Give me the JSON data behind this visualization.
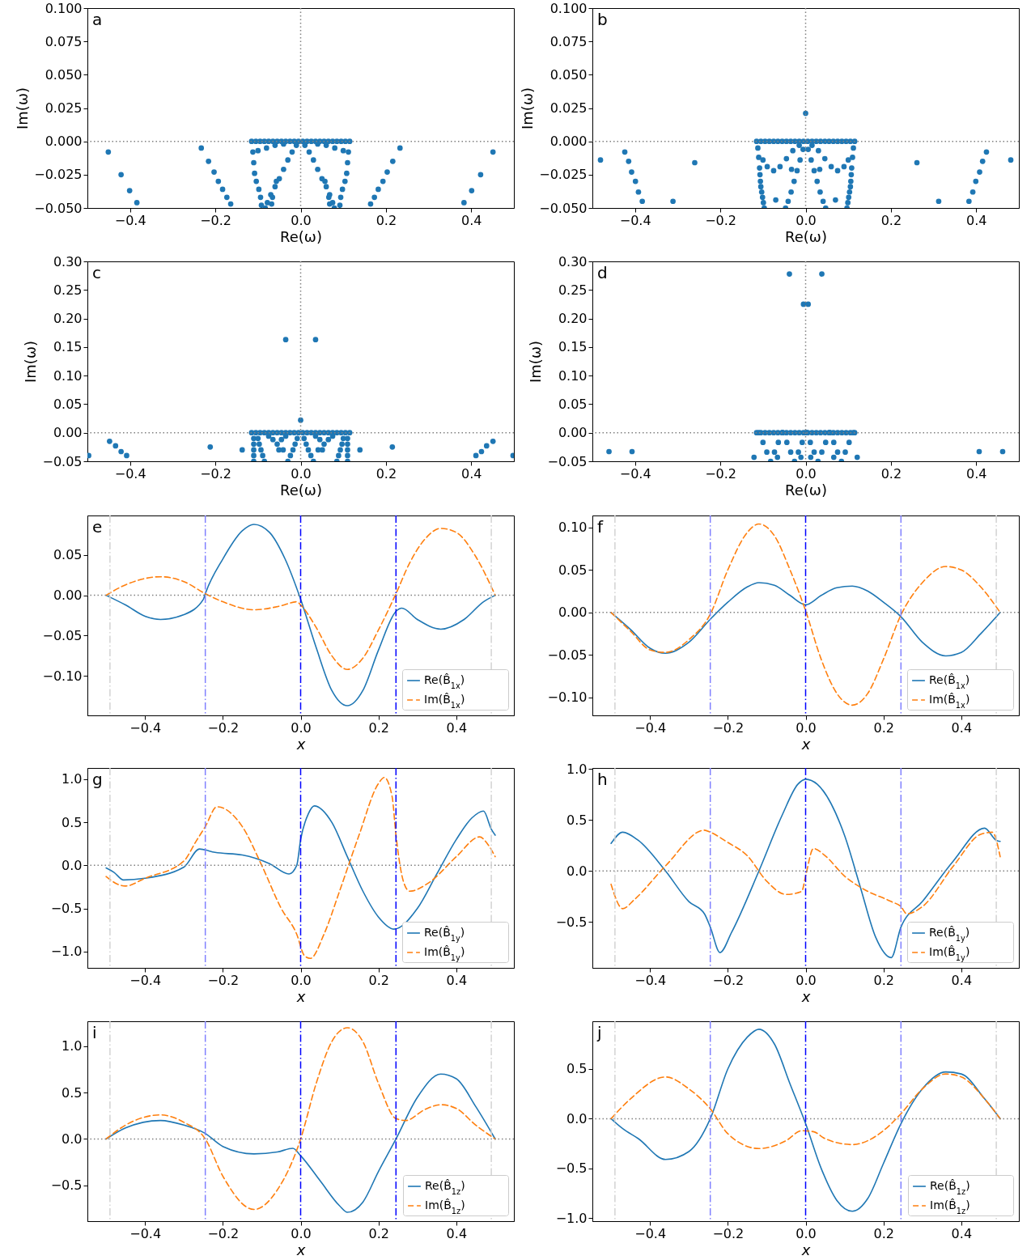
{
  "chart_data": [
    {
      "type": "scatter",
      "title": "a",
      "xlabel": "Re(ω)",
      "ylabel": "Im(ω)",
      "color": "#1f77b4",
      "marker": "circle",
      "xlim": [
        -0.5,
        0.5
      ],
      "ylim": [
        -0.05,
        0.1
      ],
      "xticks": [
        {
          "value": -0.4,
          "label": "−0.4"
        },
        {
          "value": -0.2,
          "label": "−0.2"
        },
        {
          "value": 0,
          "label": "0.0"
        },
        {
          "value": 0.2,
          "label": "0.2"
        },
        {
          "value": 0.4,
          "label": "0.4"
        }
      ],
      "yticks": [
        {
          "value": -0.05,
          "label": "−0.050"
        },
        {
          "value": -0.025,
          "label": "−0.025"
        },
        {
          "value": 0,
          "label": "0.000"
        },
        {
          "value": 0.025,
          "label": "0.025"
        },
        {
          "value": 0.05,
          "label": "0.050"
        },
        {
          "value": 0.075,
          "label": "0.075"
        },
        {
          "value": 0.1,
          "label": "0.100"
        }
      ],
      "ref_lines": [
        {
          "axis": "y",
          "value": 0,
          "color": "#808080",
          "line_style": "dotted"
        },
        {
          "axis": "x",
          "value": 0,
          "color": "#808080",
          "line_style": "dotted"
        }
      ],
      "x": [
        -0.115,
        -0.105,
        -0.095,
        -0.085,
        -0.075,
        -0.065,
        -0.055,
        -0.045,
        -0.035,
        -0.025,
        -0.015,
        -0.005,
        0.005,
        0.015,
        0.025,
        0.035,
        0.045,
        0.055,
        0.065,
        0.075,
        0.085,
        0.095,
        0.105,
        0.115,
        -0.112,
        -0.11,
        -0.108,
        -0.104,
        -0.098,
        -0.094,
        -0.092,
        0.112,
        0.11,
        0.108,
        0.104,
        0.098,
        0.094,
        0.092,
        -0.1,
        -0.08,
        -0.06,
        -0.04,
        0.1,
        0.08,
        0.06,
        0.04,
        -0.01,
        -0.02,
        -0.03,
        -0.04,
        -0.05,
        -0.06,
        -0.07,
        -0.078,
        -0.083,
        0.01,
        0.02,
        0.03,
        0.04,
        0.05,
        0.06,
        0.068,
        0.075,
        0.079,
        -0.057,
        -0.066,
        -0.068,
        0.057,
        0.066,
        0.068,
        -0.451,
        -0.421,
        -0.401,
        -0.384,
        -0.233,
        -0.216,
        -0.203,
        -0.193,
        -0.183,
        -0.173,
        -0.164,
        0.164,
        0.173,
        0.182,
        0.193,
        0.203,
        0.216,
        0.233,
        0.383,
        0.401,
        0.422,
        0.451
      ],
      "values": [
        0,
        0,
        0,
        0,
        0,
        0,
        0,
        0,
        0,
        0,
        0,
        0,
        0,
        0,
        0,
        0,
        0,
        0,
        0,
        0,
        0,
        0,
        0,
        0,
        -0.008,
        -0.016,
        -0.024,
        -0.03,
        -0.036,
        -0.042,
        -0.048,
        -0.008,
        -0.016,
        -0.024,
        -0.03,
        -0.036,
        -0.042,
        -0.048,
        -0.007,
        -0.005,
        -0.003,
        -0.002,
        -0.007,
        -0.005,
        -0.003,
        -0.002,
        -0.003,
        -0.008,
        -0.014,
        -0.021,
        -0.028,
        -0.034,
        -0.04,
        -0.046,
        -0.05,
        -0.003,
        -0.008,
        -0.014,
        -0.021,
        -0.028,
        -0.034,
        -0.04,
        -0.046,
        -0.05,
        -0.03,
        -0.042,
        -0.047,
        -0.03,
        -0.042,
        -0.047,
        -0.008,
        -0.025,
        -0.037,
        -0.046,
        -0.005,
        -0.015,
        -0.023,
        -0.03,
        -0.036,
        -0.042,
        -0.047,
        -0.047,
        -0.042,
        -0.036,
        -0.03,
        -0.023,
        -0.015,
        -0.005,
        -0.046,
        -0.037,
        -0.025,
        -0.008
      ]
    },
    {
      "type": "scatter",
      "title": "b",
      "xlabel": "Re(ω)",
      "ylabel": "Im(ω)",
      "color": "#1f77b4",
      "marker": "circle",
      "xlim": [
        -0.5,
        0.5
      ],
      "ylim": [
        -0.05,
        0.1
      ],
      "xticks": [
        {
          "value": -0.4,
          "label": "−0.4"
        },
        {
          "value": -0.2,
          "label": "−0.2"
        },
        {
          "value": 0,
          "label": "0.0"
        },
        {
          "value": 0.2,
          "label": "0.2"
        },
        {
          "value": 0.4,
          "label": "0.4"
        }
      ],
      "yticks": [
        {
          "value": -0.05,
          "label": "−0.050"
        },
        {
          "value": -0.025,
          "label": "−0.025"
        },
        {
          "value": 0,
          "label": "0.000"
        },
        {
          "value": 0.025,
          "label": "0.025"
        },
        {
          "value": 0.05,
          "label": "0.050"
        },
        {
          "value": 0.075,
          "label": "0.075"
        },
        {
          "value": 0.1,
          "label": "0.100"
        }
      ],
      "ref_lines": [
        {
          "axis": "y",
          "value": 0,
          "color": "#808080",
          "line_style": "dotted"
        },
        {
          "axis": "x",
          "value": 0,
          "color": "#808080",
          "line_style": "dotted"
        }
      ],
      "x": [
        -0.115,
        -0.105,
        -0.095,
        -0.085,
        -0.075,
        -0.065,
        -0.055,
        -0.045,
        -0.035,
        -0.025,
        -0.015,
        -0.005,
        0.005,
        0.015,
        0.025,
        0.035,
        0.045,
        0.055,
        0.065,
        0.075,
        0.085,
        0.095,
        0.105,
        0.115,
        -0.112,
        -0.11,
        -0.108,
        -0.107,
        -0.106,
        -0.105,
        -0.103,
        -0.101,
        -0.099,
        -0.097,
        0.112,
        0.11,
        0.108,
        0.107,
        0.106,
        0.105,
        0.103,
        0.101,
        0.099,
        0.097,
        -0.1,
        -0.09,
        -0.075,
        -0.06,
        -0.045,
        -0.03,
        -0.015,
        0.1,
        0.09,
        0.075,
        0.06,
        0.045,
        0.03,
        0.015,
        -0.006,
        -0.013,
        -0.02,
        -0.027,
        -0.034,
        -0.041,
        -0.047,
        0.006,
        0.013,
        0.02,
        0.027,
        0.034,
        0.041,
        0.047,
        -0.033,
        -0.07,
        0.033,
        0.07,
        0,
        -0.481,
        -0.424,
        -0.415,
        -0.408,
        -0.399,
        -0.392,
        -0.383,
        -0.26,
        -0.311,
        0.261,
        0.312,
        0.383,
        0.392,
        0.399,
        0.408,
        0.415,
        0.424,
        0.481
      ],
      "values": [
        0,
        0,
        0,
        0,
        0,
        0,
        0,
        0,
        0,
        0,
        0,
        0,
        0,
        0,
        0,
        0,
        0,
        0,
        0,
        0,
        0,
        0,
        0,
        0,
        -0.005,
        -0.012,
        -0.02,
        -0.025,
        -0.03,
        -0.034,
        -0.038,
        -0.042,
        -0.046,
        -0.05,
        -0.005,
        -0.012,
        -0.02,
        -0.025,
        -0.03,
        -0.034,
        -0.038,
        -0.042,
        -0.046,
        -0.05,
        -0.014,
        -0.019,
        -0.022,
        -0.019,
        -0.013,
        -0.007,
        -0.003,
        -0.014,
        -0.019,
        -0.022,
        -0.019,
        -0.013,
        -0.007,
        -0.003,
        -0.006,
        -0.014,
        -0.022,
        -0.03,
        -0.038,
        -0.045,
        -0.05,
        -0.006,
        -0.014,
        -0.022,
        -0.03,
        -0.038,
        -0.045,
        -0.05,
        -0.021,
        -0.044,
        -0.021,
        -0.044,
        0.021,
        -0.014,
        -0.008,
        -0.015,
        -0.023,
        -0.03,
        -0.038,
        -0.045,
        -0.016,
        -0.045,
        -0.016,
        -0.045,
        -0.045,
        -0.038,
        -0.03,
        -0.023,
        -0.015,
        -0.008,
        -0.014
      ]
    },
    {
      "type": "scatter",
      "title": "c",
      "xlabel": "Re(ω)",
      "ylabel": "Im(ω)",
      "color": "#1f77b4",
      "marker": "circle",
      "xlim": [
        -0.5,
        0.5
      ],
      "ylim": [
        -0.05,
        0.3
      ],
      "xticks": [
        {
          "value": -0.4,
          "label": "−0.4"
        },
        {
          "value": -0.2,
          "label": "−0.2"
        },
        {
          "value": 0,
          "label": "0.0"
        },
        {
          "value": 0.2,
          "label": "0.2"
        },
        {
          "value": 0.4,
          "label": "0.4"
        }
      ],
      "yticks": [
        {
          "value": -0.05,
          "label": "−0.05"
        },
        {
          "value": 0,
          "label": "0.00"
        },
        {
          "value": 0.05,
          "label": "0.05"
        },
        {
          "value": 0.1,
          "label": "0.10"
        },
        {
          "value": 0.15,
          "label": "0.15"
        },
        {
          "value": 0.2,
          "label": "0.20"
        },
        {
          "value": 0.25,
          "label": "0.25"
        },
        {
          "value": 0.3,
          "label": "0.30"
        }
      ],
      "ref_lines": [
        {
          "axis": "y",
          "value": 0,
          "color": "#808080",
          "line_style": "dotted"
        },
        {
          "axis": "x",
          "value": 0,
          "color": "#808080",
          "line_style": "dotted"
        }
      ],
      "x": [
        -0.115,
        -0.105,
        -0.095,
        -0.085,
        -0.075,
        -0.065,
        -0.055,
        -0.045,
        -0.035,
        -0.025,
        -0.015,
        -0.005,
        0.005,
        0.015,
        0.025,
        0.035,
        0.045,
        0.055,
        0.065,
        0.075,
        0.085,
        0.095,
        0.105,
        0.115,
        -0.11,
        -0.11,
        -0.11,
        -0.11,
        -0.11,
        0.11,
        0.11,
        0.11,
        0.11,
        0.11,
        -0.1,
        -0.097,
        -0.093,
        -0.089,
        -0.085,
        0.1,
        0.097,
        0.093,
        0.089,
        0.085,
        -0.008,
        -0.013,
        -0.018,
        -0.024,
        -0.03,
        0.008,
        0.013,
        0.018,
        0.024,
        0.03,
        -0.075,
        -0.065,
        -0.055,
        -0.045,
        -0.035,
        0.075,
        0.065,
        0.055,
        0.045,
        0.035,
        -0.051,
        -0.041,
        0.051,
        0.041,
        0,
        -0.035,
        0.035,
        -0.448,
        -0.434,
        -0.421,
        -0.408,
        -0.497,
        -0.212,
        -0.137,
        0.139,
        0.215,
        0.451,
        0.436,
        0.424,
        0.411,
        0.498
      ],
      "values": [
        0,
        0,
        0,
        0,
        0,
        0,
        0,
        0,
        0,
        0,
        0,
        0,
        0,
        0,
        0,
        0,
        0,
        0,
        0,
        0,
        0,
        0,
        0,
        0,
        -0.01,
        -0.02,
        -0.03,
        -0.04,
        -0.05,
        -0.01,
        -0.02,
        -0.03,
        -0.04,
        -0.05,
        -0.01,
        -0.02,
        -0.03,
        -0.04,
        -0.05,
        -0.01,
        -0.02,
        -0.03,
        -0.04,
        -0.05,
        -0.01,
        -0.02,
        -0.03,
        -0.04,
        -0.05,
        -0.01,
        -0.02,
        -0.03,
        -0.04,
        -0.05,
        -0.006,
        -0.012,
        -0.02,
        -0.012,
        -0.006,
        -0.006,
        -0.012,
        -0.02,
        -0.012,
        -0.006,
        -0.03,
        -0.03,
        -0.03,
        -0.03,
        0.022,
        0.163,
        0.163,
        -0.015,
        -0.023,
        -0.033,
        -0.04,
        -0.04,
        -0.025,
        -0.03,
        -0.03,
        -0.025,
        -0.015,
        -0.023,
        -0.033,
        -0.04,
        -0.04
      ]
    },
    {
      "type": "scatter",
      "title": "d",
      "xlabel": "Re(ω)",
      "ylabel": "Im(ω)",
      "color": "#1f77b4",
      "marker": "circle",
      "xlim": [
        -0.5,
        0.5
      ],
      "ylim": [
        -0.05,
        0.3
      ],
      "xticks": [
        {
          "value": -0.4,
          "label": "−0.4"
        },
        {
          "value": -0.2,
          "label": "−0.2"
        },
        {
          "value": 0,
          "label": "0.0"
        },
        {
          "value": 0.2,
          "label": "0.2"
        },
        {
          "value": 0.4,
          "label": "0.4"
        }
      ],
      "yticks": [
        {
          "value": -0.05,
          "label": "−0.05"
        },
        {
          "value": 0,
          "label": "0.00"
        },
        {
          "value": 0.05,
          "label": "0.05"
        },
        {
          "value": 0.1,
          "label": "0.10"
        },
        {
          "value": 0.15,
          "label": "0.15"
        },
        {
          "value": 0.2,
          "label": "0.20"
        },
        {
          "value": 0.25,
          "label": "0.25"
        },
        {
          "value": 0.3,
          "label": "0.30"
        }
      ],
      "ref_lines": [
        {
          "axis": "y",
          "value": 0,
          "color": "#808080",
          "line_style": "dotted"
        },
        {
          "axis": "x",
          "value": 0,
          "color": "#808080",
          "line_style": "dotted"
        }
      ],
      "x": [
        -0.115,
        -0.105,
        -0.095,
        -0.085,
        -0.075,
        -0.065,
        -0.055,
        -0.045,
        -0.035,
        -0.025,
        -0.015,
        -0.005,
        0.005,
        0.015,
        0.025,
        0.035,
        0.045,
        0.055,
        0.065,
        0.075,
        0.085,
        0.095,
        0.105,
        0.115,
        -0.11,
        -0.1,
        -0.091,
        -0.082,
        -0.073,
        -0.064,
        -0.054,
        -0.054,
        -0.044,
        -0.035,
        -0.026,
        -0.017,
        -0.008,
        0.002,
        0.001,
        0.011,
        0.02,
        0.029,
        0.038,
        0.047,
        0.057,
        0.056,
        0.066,
        0.075,
        0.084,
        0.093,
        0.102,
        0.112,
        -0.038,
        0.038,
        -0.005,
        0.006,
        -0.461,
        -0.407,
        0.407,
        0.462,
        -0.121,
        0.121,
        -0.066,
        -0.011,
        0.012,
        0.066
      ],
      "values": [
        0,
        0,
        0,
        0,
        0,
        0,
        0,
        0,
        0,
        0,
        0,
        0,
        0,
        0,
        0,
        0,
        0,
        0,
        0,
        0,
        0,
        0,
        0,
        0,
        0,
        -0.017,
        -0.034,
        -0.05,
        -0.034,
        -0.017,
        0,
        0,
        -0.017,
        -0.034,
        -0.05,
        -0.034,
        -0.017,
        0,
        0,
        -0.017,
        -0.034,
        -0.05,
        -0.034,
        -0.017,
        0,
        0,
        -0.017,
        -0.034,
        -0.05,
        -0.034,
        -0.017,
        0,
        0.278,
        0.278,
        0.225,
        0.225,
        -0.033,
        -0.033,
        -0.033,
        -0.033,
        -0.043,
        -0.043,
        -0.043,
        -0.043,
        -0.043,
        -0.043
      ]
    },
    {
      "type": "line",
      "title": "e",
      "xlabel": "x",
      "xlim": [
        -0.548,
        0.548
      ],
      "ylim": [
        -0.149,
        0.099
      ],
      "legend": "bottom right",
      "xticks": [
        {
          "value": -0.4,
          "label": "−0.4"
        },
        {
          "value": -0.2,
          "label": "−0.2"
        },
        {
          "value": 0,
          "label": "0.0"
        },
        {
          "value": 0.2,
          "label": "0.2"
        },
        {
          "value": 0.4,
          "label": "0.4"
        }
      ],
      "yticks": [
        {
          "value": -0.1,
          "label": "−0.10"
        },
        {
          "value": -0.05,
          "label": "−0.05"
        },
        {
          "value": 0,
          "label": "0.00"
        },
        {
          "value": 0.05,
          "label": "0.05"
        }
      ],
      "ref_lines": [
        {
          "axis": "y",
          "value": 0,
          "color": "#808080",
          "line_style": "dotted"
        },
        {
          "axis": "x",
          "value": -0.49,
          "color": "#d3d3d3",
          "line_style": "dashdot"
        },
        {
          "axis": "x",
          "value": -0.245,
          "color": "#8080ff",
          "line_style": "dashdot"
        },
        {
          "axis": "x",
          "value": 0,
          "color": "#0000ff",
          "line_style": "dashdot"
        },
        {
          "axis": "x",
          "value": 0.245,
          "color": "#0000ff",
          "line_style": "dashdot"
        },
        {
          "axis": "x",
          "value": 0.49,
          "color": "#d3d3d3",
          "line_style": "dashdot"
        }
      ],
      "series": [
        {
          "name": "Re(B̂$_{1x}$)",
          "color": "#1f77b4",
          "line_style": "solid",
          "x": [
            -0.5,
            -0.45,
            -0.4,
            -0.36,
            -0.3,
            -0.25,
            -0.245,
            -0.2,
            -0.15,
            -0.12,
            -0.08,
            -0.04,
            0,
            0.04,
            0.08,
            0.12,
            0.16,
            0.2,
            0.245,
            0.26,
            0.3,
            0.36,
            0.42,
            0.47,
            0.5
          ],
          "values": [
            0,
            -0.012,
            -0.026,
            -0.03,
            -0.024,
            -0.005,
            0.002,
            0.045,
            0.08,
            0.088,
            0.078,
            0.045,
            -0.005,
            -0.065,
            -0.118,
            -0.137,
            -0.118,
            -0.068,
            -0.02,
            -0.016,
            -0.03,
            -0.042,
            -0.03,
            -0.008,
            0
          ]
        },
        {
          "name": "Im(B̂$_{1x}$)",
          "color": "#ff7f0e",
          "line_style": "dashed",
          "x": [
            -0.5,
            -0.45,
            -0.36,
            -0.3,
            -0.245,
            -0.2,
            -0.12,
            -0.05,
            -0.01,
            0,
            0.04,
            0.08,
            0.12,
            0.16,
            0.2,
            0.245,
            0.28,
            0.32,
            0.36,
            0.4,
            0.45,
            0.5
          ],
          "values": [
            0,
            0.013,
            0.023,
            0.017,
            0.002,
            -0.008,
            -0.018,
            -0.013,
            -0.008,
            -0.012,
            -0.04,
            -0.075,
            -0.092,
            -0.078,
            -0.043,
            0.002,
            0.04,
            0.07,
            0.083,
            0.078,
            0.048,
            0
          ]
        }
      ]
    },
    {
      "type": "line",
      "title": "f",
      "xlabel": "x",
      "xlim": [
        -0.548,
        0.548
      ],
      "ylim": [
        -0.121,
        0.114
      ],
      "legend": "bottom right",
      "xticks": [
        {
          "value": -0.4,
          "label": "−0.4"
        },
        {
          "value": -0.2,
          "label": "−0.2"
        },
        {
          "value": 0,
          "label": "0.0"
        },
        {
          "value": 0.2,
          "label": "0.2"
        },
        {
          "value": 0.4,
          "label": "0.4"
        }
      ],
      "yticks": [
        {
          "value": -0.1,
          "label": "−0.10"
        },
        {
          "value": -0.05,
          "label": "−0.05"
        },
        {
          "value": 0,
          "label": "0.00"
        },
        {
          "value": 0.05,
          "label": "0.05"
        },
        {
          "value": 0.1,
          "label": "0.10"
        }
      ],
      "ref_lines": [
        {
          "axis": "y",
          "value": 0,
          "color": "#808080",
          "line_style": "dotted"
        },
        {
          "axis": "x",
          "value": -0.49,
          "color": "#d3d3d3",
          "line_style": "dashdot"
        },
        {
          "axis": "x",
          "value": -0.245,
          "color": "#8080ff",
          "line_style": "dashdot"
        },
        {
          "axis": "x",
          "value": 0,
          "color": "#0000ff",
          "line_style": "dashdot"
        },
        {
          "axis": "x",
          "value": 0.245,
          "color": "#8080ff",
          "line_style": "dashdot"
        },
        {
          "axis": "x",
          "value": 0.49,
          "color": "#d3d3d3",
          "line_style": "dashdot"
        }
      ],
      "series": [
        {
          "name": "Re(B̂$_{1x}$)",
          "color": "#1f77b4",
          "line_style": "solid",
          "x": [
            -0.5,
            -0.45,
            -0.4,
            -0.36,
            -0.3,
            -0.245,
            -0.2,
            -0.15,
            -0.12,
            -0.08,
            -0.04,
            0,
            0.04,
            0.08,
            0.12,
            0.16,
            0.2,
            0.245,
            0.3,
            0.36,
            0.4,
            0.45,
            0.5
          ],
          "values": [
            0,
            -0.02,
            -0.042,
            -0.048,
            -0.035,
            -0.008,
            0.012,
            0.03,
            0.035,
            0.032,
            0.02,
            0.009,
            0.02,
            0.029,
            0.031,
            0.025,
            0.012,
            -0.005,
            -0.035,
            -0.051,
            -0.047,
            -0.025,
            0
          ]
        },
        {
          "name": "Im(B̂$_{1x}$)",
          "color": "#ff7f0e",
          "line_style": "dashed",
          "x": [
            -0.5,
            -0.45,
            -0.4,
            -0.36,
            -0.3,
            -0.245,
            -0.2,
            -0.15,
            -0.12,
            -0.08,
            -0.04,
            0,
            0.04,
            0.08,
            0.12,
            0.16,
            0.2,
            0.245,
            0.3,
            0.36,
            0.4,
            0.45,
            0.5
          ],
          "values": [
            0,
            -0.022,
            -0.044,
            -0.047,
            -0.032,
            -0.002,
            0.05,
            0.094,
            0.104,
            0.09,
            0.05,
            0.002,
            -0.055,
            -0.095,
            -0.109,
            -0.095,
            -0.055,
            -0.003,
            0.035,
            0.054,
            0.05,
            0.03,
            0
          ]
        }
      ]
    },
    {
      "type": "line",
      "title": "g",
      "xlabel": "x",
      "xlim": [
        -0.548,
        0.548
      ],
      "ylim": [
        -1.19,
        1.13
      ],
      "legend": "bottom right",
      "xticks": [
        {
          "value": -0.4,
          "label": "−0.4"
        },
        {
          "value": -0.2,
          "label": "−0.2"
        },
        {
          "value": 0,
          "label": "0.0"
        },
        {
          "value": 0.2,
          "label": "0.2"
        },
        {
          "value": 0.4,
          "label": "0.4"
        }
      ],
      "yticks": [
        {
          "value": -1,
          "label": "−1.0"
        },
        {
          "value": -0.5,
          "label": "−0.5"
        },
        {
          "value": 0,
          "label": "0.0"
        },
        {
          "value": 0.5,
          "label": "0.5"
        },
        {
          "value": 1,
          "label": "1.0"
        }
      ],
      "ref_lines": [
        {
          "axis": "y",
          "value": 0,
          "color": "#808080",
          "line_style": "dotted"
        },
        {
          "axis": "x",
          "value": -0.49,
          "color": "#d3d3d3",
          "line_style": "dashdot"
        },
        {
          "axis": "x",
          "value": -0.245,
          "color": "#8080ff",
          "line_style": "dashdot"
        },
        {
          "axis": "x",
          "value": 0,
          "color": "#0000ff",
          "line_style": "dashdot"
        },
        {
          "axis": "x",
          "value": 0.245,
          "color": "#0000ff",
          "line_style": "dashdot"
        },
        {
          "axis": "x",
          "value": 0.49,
          "color": "#d3d3d3",
          "line_style": "dashdot"
        }
      ],
      "series": [
        {
          "name": "Re(B̂$_{1y}$)",
          "color": "#1f77b4",
          "line_style": "solid",
          "x": [
            -0.5,
            -0.48,
            -0.455,
            -0.4,
            -0.3,
            -0.26,
            -0.22,
            -0.15,
            -0.08,
            -0.03,
            -0.01,
            0,
            0.02,
            0.035,
            0.08,
            0.12,
            0.16,
            0.2,
            0.24,
            0.3,
            0.35,
            0.4,
            0.44,
            0.47,
            0.49,
            0.5
          ],
          "values": [
            -0.03,
            -0.08,
            -0.17,
            -0.15,
            -0.02,
            0.19,
            0.15,
            0.12,
            0.02,
            -0.1,
            0,
            0.3,
            0.6,
            0.69,
            0.5,
            0.1,
            -0.3,
            -0.6,
            -0.74,
            -0.5,
            -0.1,
            0.3,
            0.55,
            0.63,
            0.42,
            0.35
          ]
        },
        {
          "name": "Im(B̂$_{1y}$)",
          "color": "#ff7f0e",
          "line_style": "dashed",
          "x": [
            -0.5,
            -0.47,
            -0.45,
            -0.4,
            -0.3,
            -0.27,
            -0.245,
            -0.215,
            -0.15,
            -0.1,
            -0.05,
            -0.01,
            0.01,
            0.025,
            0.06,
            0.1,
            0.15,
            0.2,
            0.215,
            0.235,
            0.245,
            0.265,
            0.28,
            0.33,
            0.4,
            0.46,
            0.48,
            0.5
          ],
          "values": [
            -0.13,
            -0.22,
            -0.24,
            -0.15,
            0.05,
            0.27,
            0.45,
            0.68,
            0.45,
            0,
            -0.5,
            -0.8,
            -1.05,
            -1.08,
            -0.8,
            -0.3,
            0.35,
            0.95,
            1.02,
            0.8,
            0.35,
            -0.2,
            -0.3,
            -0.2,
            0.1,
            0.33,
            0.25,
            0.1
          ]
        }
      ]
    },
    {
      "type": "line",
      "title": "h",
      "xlabel": "x",
      "xlim": [
        -0.548,
        0.548
      ],
      "ylim": [
        -0.95,
        1.01
      ],
      "legend": "bottom right",
      "xticks": [
        {
          "value": -0.4,
          "label": "−0.4"
        },
        {
          "value": -0.2,
          "label": "−0.2"
        },
        {
          "value": 0,
          "label": "0.0"
        },
        {
          "value": 0.2,
          "label": "0.2"
        },
        {
          "value": 0.4,
          "label": "0.4"
        }
      ],
      "yticks": [
        {
          "value": -0.5,
          "label": "−0.5"
        },
        {
          "value": 0,
          "label": "0.0"
        },
        {
          "value": 0.5,
          "label": "0.5"
        },
        {
          "value": 1,
          "label": "1.0"
        }
      ],
      "ref_lines": [
        {
          "axis": "y",
          "value": 0,
          "color": "#808080",
          "line_style": "dotted"
        },
        {
          "axis": "x",
          "value": -0.49,
          "color": "#d3d3d3",
          "line_style": "dashdot"
        },
        {
          "axis": "x",
          "value": -0.245,
          "color": "#8080ff",
          "line_style": "dashdot"
        },
        {
          "axis": "x",
          "value": 0,
          "color": "#0000ff",
          "line_style": "dashdot"
        },
        {
          "axis": "x",
          "value": 0.245,
          "color": "#8080ff",
          "line_style": "dashdot"
        },
        {
          "axis": "x",
          "value": 0.49,
          "color": "#d3d3d3",
          "line_style": "dashdot"
        }
      ],
      "series": [
        {
          "name": "Re(B̂$_{1y}$)",
          "color": "#1f77b4",
          "line_style": "solid",
          "x": [
            -0.5,
            -0.47,
            -0.43,
            -0.36,
            -0.3,
            -0.26,
            -0.245,
            -0.22,
            -0.19,
            -0.12,
            -0.06,
            -0.02,
            0,
            0.03,
            0.1,
            0.14,
            0.18,
            0.22,
            0.245,
            0.3,
            0.38,
            0.46,
            0.49,
            0.5
          ],
          "values": [
            0.27,
            0.38,
            0.3,
            0,
            -0.3,
            -0.42,
            -0.55,
            -0.8,
            -0.6,
            0,
            0.55,
            0.85,
            0.9,
            0.85,
            0.35,
            -0.15,
            -0.65,
            -0.85,
            -0.55,
            -0.3,
            0.1,
            0.42,
            0.3,
            0.29
          ]
        },
        {
          "name": "Im(B̂$_{1y}$)",
          "color": "#ff7f0e",
          "line_style": "dashed",
          "x": [
            -0.5,
            -0.47,
            -0.44,
            -0.36,
            -0.26,
            -0.245,
            -0.2,
            -0.15,
            -0.1,
            -0.05,
            -0.01,
            0,
            0.02,
            0.05,
            0.1,
            0.15,
            0.22,
            0.245,
            0.26,
            0.3,
            0.38,
            0.45,
            0.48,
            0.5
          ],
          "values": [
            -0.13,
            -0.37,
            -0.28,
            0.05,
            0.4,
            0.38,
            0.28,
            0.15,
            -0.1,
            -0.23,
            -0.2,
            -0.05,
            0.22,
            0.15,
            -0.05,
            -0.18,
            -0.3,
            -0.35,
            -0.42,
            -0.35,
            0.05,
            0.36,
            0.38,
            0.14
          ]
        }
      ]
    },
    {
      "type": "line",
      "title": "i",
      "xlabel": "x",
      "xlim": [
        -0.548,
        0.548
      ],
      "ylim": [
        -0.886,
        1.27
      ],
      "legend": "bottom right",
      "xticks": [
        {
          "value": -0.4,
          "label": "−0.4"
        },
        {
          "value": -0.2,
          "label": "−0.2"
        },
        {
          "value": 0,
          "label": "0.0"
        },
        {
          "value": 0.2,
          "label": "0.2"
        },
        {
          "value": 0.4,
          "label": "0.4"
        }
      ],
      "yticks": [
        {
          "value": -0.5,
          "label": "−0.5"
        },
        {
          "value": 0,
          "label": "0.0"
        },
        {
          "value": 0.5,
          "label": "0.5"
        },
        {
          "value": 1,
          "label": "1.0"
        }
      ],
      "ref_lines": [
        {
          "axis": "y",
          "value": 0,
          "color": "#808080",
          "line_style": "dotted"
        },
        {
          "axis": "x",
          "value": -0.49,
          "color": "#d3d3d3",
          "line_style": "dashdot"
        },
        {
          "axis": "x",
          "value": -0.245,
          "color": "#8080ff",
          "line_style": "dashdot"
        },
        {
          "axis": "x",
          "value": 0,
          "color": "#0000ff",
          "line_style": "dashdot"
        },
        {
          "axis": "x",
          "value": 0.245,
          "color": "#0000ff",
          "line_style": "dashdot"
        },
        {
          "axis": "x",
          "value": 0.49,
          "color": "#d3d3d3",
          "line_style": "dashdot"
        }
      ],
      "series": [
        {
          "name": "Re(B̂$_{1z}$)",
          "color": "#1f77b4",
          "line_style": "solid",
          "x": [
            -0.5,
            -0.45,
            -0.36,
            -0.3,
            -0.245,
            -0.2,
            -0.12,
            -0.06,
            -0.02,
            0,
            0.05,
            0.1,
            0.12,
            0.16,
            0.2,
            0.245,
            0.3,
            0.36,
            0.4,
            0.45,
            0.5
          ],
          "values": [
            0,
            0.12,
            0.2,
            0.15,
            0.06,
            -0.08,
            -0.16,
            -0.14,
            -0.1,
            -0.18,
            -0.45,
            -0.72,
            -0.79,
            -0.68,
            -0.35,
            0,
            0.45,
            0.7,
            0.65,
            0.35,
            0
          ]
        },
        {
          "name": "Im(B̂$_{1z}$)",
          "color": "#ff7f0e",
          "line_style": "dashed",
          "x": [
            -0.5,
            -0.45,
            -0.36,
            -0.3,
            -0.245,
            -0.2,
            -0.12,
            -0.06,
            0,
            0.04,
            0.08,
            0.12,
            0.16,
            0.2,
            0.245,
            0.27,
            0.32,
            0.36,
            0.4,
            0.45,
            0.5
          ],
          "values": [
            0,
            0.15,
            0.26,
            0.18,
            0,
            -0.4,
            -0.76,
            -0.55,
            0,
            0.6,
            1.05,
            1.2,
            1.05,
            0.6,
            0.22,
            0.2,
            0.32,
            0.37,
            0.33,
            0.15,
            0
          ]
        }
      ]
    },
    {
      "type": "line",
      "title": "j",
      "xlabel": "x",
      "xlim": [
        -0.548,
        0.548
      ],
      "ylim": [
        -1.03,
        0.98
      ],
      "legend": "bottom right",
      "xticks": [
        {
          "value": -0.4,
          "label": "−0.4"
        },
        {
          "value": -0.2,
          "label": "−0.2"
        },
        {
          "value": 0,
          "label": "0.0"
        },
        {
          "value": 0.2,
          "label": "0.2"
        },
        {
          "value": 0.4,
          "label": "0.4"
        }
      ],
      "yticks": [
        {
          "value": -1,
          "label": "−1.0"
        },
        {
          "value": -0.5,
          "label": "−0.5"
        },
        {
          "value": 0,
          "label": "0.0"
        },
        {
          "value": 0.5,
          "label": "0.5"
        }
      ],
      "ref_lines": [
        {
          "axis": "y",
          "value": 0,
          "color": "#808080",
          "line_style": "dotted"
        },
        {
          "axis": "x",
          "value": -0.49,
          "color": "#d3d3d3",
          "line_style": "dashdot"
        },
        {
          "axis": "x",
          "value": -0.245,
          "color": "#8080ff",
          "line_style": "dashdot"
        },
        {
          "axis": "x",
          "value": 0,
          "color": "#0000ff",
          "line_style": "dashdot"
        },
        {
          "axis": "x",
          "value": 0.245,
          "color": "#8080ff",
          "line_style": "dashdot"
        },
        {
          "axis": "x",
          "value": 0.49,
          "color": "#d3d3d3",
          "line_style": "dashdot"
        }
      ],
      "series": [
        {
          "name": "Re(B̂$_{1z}$)",
          "color": "#1f77b4",
          "line_style": "solid",
          "x": [
            -0.5,
            -0.47,
            -0.43,
            -0.36,
            -0.3,
            -0.245,
            -0.2,
            -0.15,
            -0.12,
            -0.08,
            -0.04,
            0,
            0.04,
            0.08,
            0.12,
            0.16,
            0.2,
            0.245,
            0.3,
            0.36,
            0.4,
            0.46,
            0.5
          ],
          "values": [
            0,
            -0.1,
            -0.2,
            -0.41,
            -0.33,
            0,
            0.5,
            0.82,
            0.9,
            0.75,
            0.35,
            -0.05,
            -0.5,
            -0.82,
            -0.93,
            -0.8,
            -0.45,
            -0.05,
            0.3,
            0.47,
            0.45,
            0.2,
            0
          ]
        },
        {
          "name": "Im(B̂$_{1z}$)",
          "color": "#ff7f0e",
          "line_style": "dashed",
          "x": [
            -0.5,
            -0.45,
            -0.36,
            -0.3,
            -0.245,
            -0.2,
            -0.12,
            -0.05,
            -0.01,
            0.02,
            0.05,
            0.12,
            0.2,
            0.245,
            0.3,
            0.36,
            0.4,
            0.46,
            0.5
          ],
          "values": [
            0,
            0.2,
            0.42,
            0.3,
            0.1,
            -0.15,
            -0.3,
            -0.22,
            -0.12,
            -0.13,
            -0.2,
            -0.26,
            -0.12,
            0.05,
            0.3,
            0.45,
            0.42,
            0.2,
            0
          ]
        }
      ]
    }
  ]
}
